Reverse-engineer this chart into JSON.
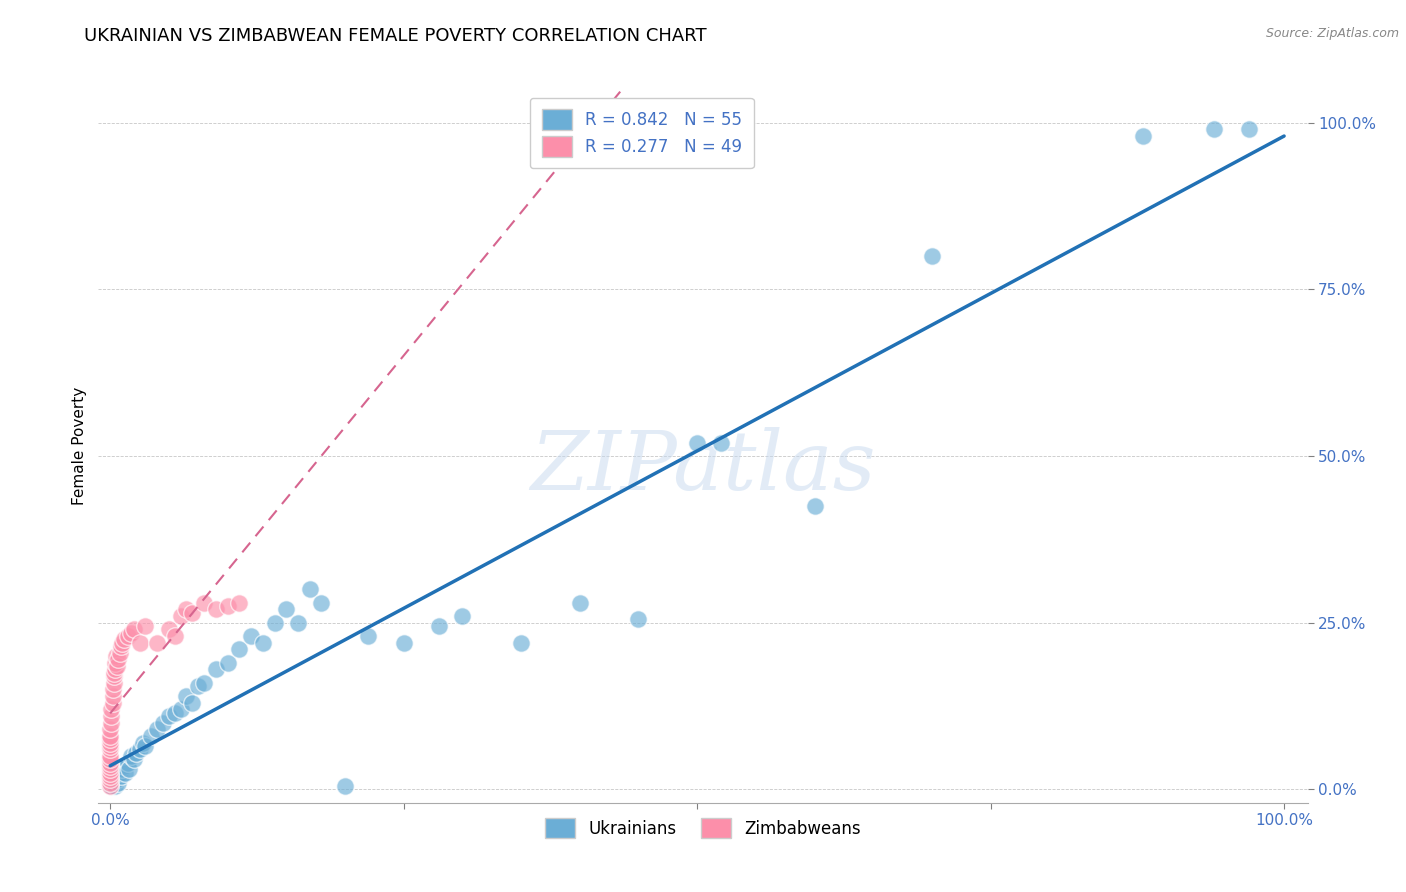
{
  "title": "UKRAINIAN VS ZIMBABWEAN FEMALE POVERTY CORRELATION CHART",
  "source": "Source: ZipAtlas.com",
  "ylabel": "Female Poverty",
  "ytick_labels": [
    "0.0%",
    "25.0%",
    "50.0%",
    "75.0%",
    "100.0%"
  ],
  "ytick_values": [
    0.0,
    0.25,
    0.5,
    0.75,
    1.0
  ],
  "xtick_values": [
    0.0,
    0.25,
    0.5,
    0.75,
    1.0
  ],
  "xlim": [
    -0.01,
    1.02
  ],
  "ylim": [
    -0.02,
    1.05
  ],
  "ukrainian_color": "#6baed6",
  "zimbabwean_color": "#fc8faa",
  "line_color_ukrainian": "#2171b5",
  "line_color_zimbabwean": "#d6658f",
  "watermark_color": "#c6d9ef",
  "legend_label_1": "R = 0.842   N = 55",
  "legend_label_2": "R = 0.277   N = 49",
  "legend_label_ukrainians": "Ukrainians",
  "legend_label_zimbabweans": "Zimbabweans",
  "ukrainian_points": [
    [
      0.001,
      0.005
    ],
    [
      0.002,
      0.01
    ],
    [
      0.003,
      0.015
    ],
    [
      0.004,
      0.005
    ],
    [
      0.005,
      0.02
    ],
    [
      0.006,
      0.015
    ],
    [
      0.007,
      0.01
    ],
    [
      0.008,
      0.025
    ],
    [
      0.009,
      0.02
    ],
    [
      0.01,
      0.03
    ],
    [
      0.012,
      0.035
    ],
    [
      0.013,
      0.025
    ],
    [
      0.015,
      0.04
    ],
    [
      0.016,
      0.03
    ],
    [
      0.018,
      0.05
    ],
    [
      0.02,
      0.045
    ],
    [
      0.022,
      0.055
    ],
    [
      0.025,
      0.06
    ],
    [
      0.028,
      0.07
    ],
    [
      0.03,
      0.065
    ],
    [
      0.035,
      0.08
    ],
    [
      0.04,
      0.09
    ],
    [
      0.045,
      0.1
    ],
    [
      0.05,
      0.11
    ],
    [
      0.055,
      0.115
    ],
    [
      0.06,
      0.12
    ],
    [
      0.065,
      0.14
    ],
    [
      0.07,
      0.13
    ],
    [
      0.075,
      0.155
    ],
    [
      0.08,
      0.16
    ],
    [
      0.09,
      0.18
    ],
    [
      0.1,
      0.19
    ],
    [
      0.11,
      0.21
    ],
    [
      0.12,
      0.23
    ],
    [
      0.13,
      0.22
    ],
    [
      0.14,
      0.25
    ],
    [
      0.15,
      0.27
    ],
    [
      0.16,
      0.25
    ],
    [
      0.17,
      0.3
    ],
    [
      0.18,
      0.28
    ],
    [
      0.2,
      0.005
    ],
    [
      0.22,
      0.23
    ],
    [
      0.25,
      0.22
    ],
    [
      0.28,
      0.245
    ],
    [
      0.3,
      0.26
    ],
    [
      0.35,
      0.22
    ],
    [
      0.4,
      0.28
    ],
    [
      0.45,
      0.255
    ],
    [
      0.5,
      0.52
    ],
    [
      0.52,
      0.52
    ],
    [
      0.6,
      0.425
    ],
    [
      0.7,
      0.8
    ],
    [
      0.88,
      0.98
    ],
    [
      0.94,
      0.99
    ],
    [
      0.97,
      0.99
    ]
  ],
  "zimbabwean_points": [
    [
      0.0,
      0.005
    ],
    [
      0.0,
      0.01
    ],
    [
      0.0,
      0.015
    ],
    [
      0.0,
      0.02
    ],
    [
      0.0,
      0.025
    ],
    [
      0.0,
      0.03
    ],
    [
      0.0,
      0.035
    ],
    [
      0.0,
      0.04
    ],
    [
      0.0,
      0.045
    ],
    [
      0.0,
      0.05
    ],
    [
      0.0,
      0.06
    ],
    [
      0.0,
      0.065
    ],
    [
      0.0,
      0.07
    ],
    [
      0.0,
      0.075
    ],
    [
      0.0,
      0.08
    ],
    [
      0.0,
      0.09
    ],
    [
      0.001,
      0.1
    ],
    [
      0.001,
      0.11
    ],
    [
      0.001,
      0.12
    ],
    [
      0.002,
      0.13
    ],
    [
      0.002,
      0.14
    ],
    [
      0.002,
      0.15
    ],
    [
      0.003,
      0.16
    ],
    [
      0.003,
      0.17
    ],
    [
      0.003,
      0.175
    ],
    [
      0.004,
      0.18
    ],
    [
      0.004,
      0.19
    ],
    [
      0.005,
      0.2
    ],
    [
      0.006,
      0.185
    ],
    [
      0.007,
      0.195
    ],
    [
      0.008,
      0.205
    ],
    [
      0.009,
      0.215
    ],
    [
      0.01,
      0.22
    ],
    [
      0.012,
      0.225
    ],
    [
      0.015,
      0.23
    ],
    [
      0.018,
      0.235
    ],
    [
      0.02,
      0.24
    ],
    [
      0.025,
      0.22
    ],
    [
      0.03,
      0.245
    ],
    [
      0.04,
      0.22
    ],
    [
      0.05,
      0.24
    ],
    [
      0.055,
      0.23
    ],
    [
      0.06,
      0.26
    ],
    [
      0.065,
      0.27
    ],
    [
      0.07,
      0.265
    ],
    [
      0.08,
      0.28
    ],
    [
      0.09,
      0.27
    ],
    [
      0.1,
      0.275
    ],
    [
      0.11,
      0.28
    ]
  ]
}
